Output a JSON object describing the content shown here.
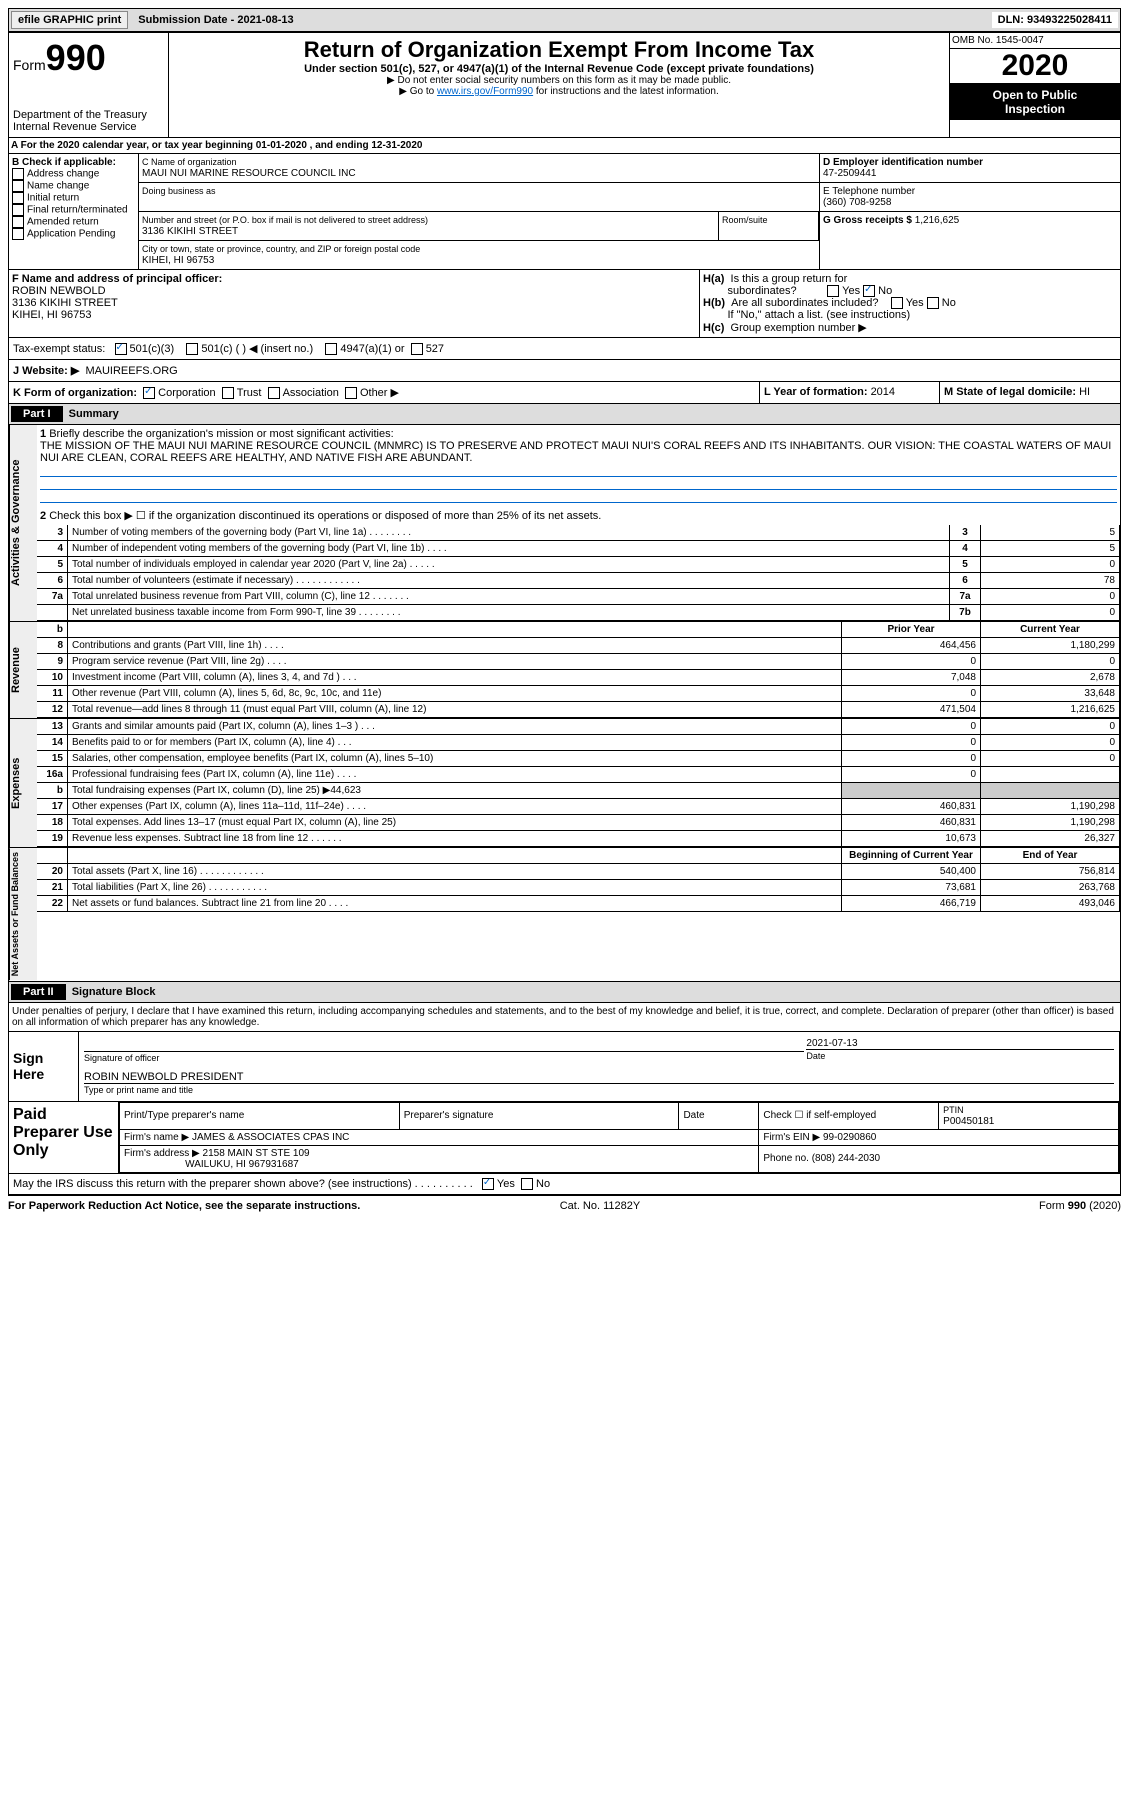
{
  "topbar": {
    "efile": "efile GRAPHIC print",
    "sub_label": "Submission Date - ",
    "sub_date": "2021-08-13",
    "dln_label": "DLN: ",
    "dln": "93493225028411"
  },
  "header": {
    "form_word": "Form",
    "form_no": "990",
    "dept": "Department of the Treasury",
    "irs": "Internal Revenue Service",
    "title": "Return of Organization Exempt From Income Tax",
    "sub1": "Under section 501(c), 527, or 4947(a)(1) of the Internal Revenue Code (except private foundations)",
    "sub2": "▶ Do not enter social security numbers on this form as it may be made public.",
    "sub3a": "▶ Go to ",
    "sub3_link": "www.irs.gov/Form990",
    "sub3b": " for instructions and the latest information.",
    "omb": "OMB No. 1545-0047",
    "year": "2020",
    "open1": "Open to Public",
    "open2": "Inspection"
  },
  "rowA": {
    "a": "A For the 2020 calendar year, or tax year beginning ",
    "beg": "01-01-2020",
    "mid": " , and ending ",
    "end": "12-31-2020"
  },
  "boxB": {
    "hdr": "B Check if applicable:",
    "items": [
      "Address change",
      "Name change",
      "Initial return",
      "Final return/terminated",
      "Amended return",
      "Application Pending"
    ]
  },
  "boxC": {
    "name_lbl": "C Name of organization",
    "name": "MAUI NUI MARINE RESOURCE COUNCIL INC",
    "dba_lbl": "Doing business as",
    "dba": "",
    "addr_lbl": "Number and street (or P.O. box if mail is not delivered to street address)",
    "room_lbl": "Room/suite",
    "addr": "3136 KIKIHI STREET",
    "city_lbl": "City or town, state or province, country, and ZIP or foreign postal code",
    "city": "KIHEI, HI  96753"
  },
  "boxD": {
    "lbl": "D Employer identification number",
    "val": "47-2509441"
  },
  "boxE": {
    "lbl": "E Telephone number",
    "val": "(360) 708-9258"
  },
  "boxG": {
    "lbl": "G Gross receipts $ ",
    "val": "1,216,625"
  },
  "boxF": {
    "lbl": "F  Name and address of principal officer:",
    "name": "ROBIN NEWBOLD",
    "addr": "3136 KIKIHI STREET",
    "city": "KIHEI, HI  96753"
  },
  "boxH": {
    "a_lbl": "H(a)",
    "a_txt": "Is this a group return for",
    "a_txt2": "subordinates?",
    "a_yes": "Yes",
    "a_no": "No",
    "b_lbl": "H(b)",
    "b_txt": "Are all subordinates included?",
    "b_yes": "Yes",
    "b_no": "No",
    "b_note": "If \"No,\" attach a list. (see instructions)",
    "c_lbl": "H(c)",
    "c_txt": "Group exemption number ▶"
  },
  "taxrow": {
    "lbl": "Tax-exempt status:",
    "o1": "501(c)(3)",
    "o2": "501(c) (  ) ◀ (insert no.)",
    "o3": "4947(a)(1) or",
    "o4": "527"
  },
  "jrow": {
    "lbl": "J Website: ▶",
    "val": "MAUIREEFS.ORG"
  },
  "krow": {
    "k": "K Form of organization:",
    "k1": "Corporation",
    "k2": "Trust",
    "k3": "Association",
    "k4": "Other ▶",
    "l_lbl": "L Year of formation: ",
    "l_val": "2014",
    "m_lbl": "M State of legal domicile: ",
    "m_val": "HI"
  },
  "part1": {
    "hdr": "Part I",
    "title": "Summary"
  },
  "summary": {
    "q1": "Briefly describe the organization's mission or most significant activities:",
    "mission": "THE MISSION OF THE MAUI NUI MARINE RESOURCE COUNCIL (MNMRC) IS TO PRESERVE AND PROTECT MAUI NUI'S CORAL REEFS AND ITS INHABITANTS. OUR VISION: THE COASTAL WATERS OF MAUI NUI ARE CLEAN, CORAL REEFS ARE HEALTHY, AND NATIVE FISH ARE ABUNDANT.",
    "q2": "Check this box ▶ ☐ if the organization discontinued its operations or disposed of more than 25% of its net assets.",
    "rows": [
      {
        "n": "3",
        "t": "Number of voting members of the governing body (Part VI, line 1a)  .   .   .   .   .   .   .   .",
        "box": "3",
        "v": "5"
      },
      {
        "n": "4",
        "t": "Number of independent voting members of the governing body (Part VI, line 1b)  .   .   .   .",
        "box": "4",
        "v": "5"
      },
      {
        "n": "5",
        "t": "Total number of individuals employed in calendar year 2020 (Part V, line 2a)  .   .   .   .   .",
        "box": "5",
        "v": "0"
      },
      {
        "n": "6",
        "t": "Total number of volunteers (estimate if necessary)  .   .   .   .   .   .   .   .   .   .   .   .",
        "box": "6",
        "v": "78"
      },
      {
        "n": "7a",
        "t": "Total unrelated business revenue from Part VIII, column (C), line 12  .   .   .   .   .   .   .",
        "box": "7a",
        "v": "0"
      },
      {
        "n": "",
        "t": "Net unrelated business taxable income from Form 990-T, line 39  .   .   .   .   .   .   .   .",
        "box": "7b",
        "v": "0"
      }
    ]
  },
  "revenue": {
    "hdr": {
      "b": "b",
      "prior": "Prior Year",
      "curr": "Current Year"
    },
    "rows": [
      {
        "n": "8",
        "t": "Contributions and grants (Part VIII, line 1h)  .   .   .   .",
        "p": "464,456",
        "c": "1,180,299"
      },
      {
        "n": "9",
        "t": "Program service revenue (Part VIII, line 2g)  .   .   .   .",
        "p": "0",
        "c": "0"
      },
      {
        "n": "10",
        "t": "Investment income (Part VIII, column (A), lines 3, 4, and 7d )  .   .   .",
        "p": "7,048",
        "c": "2,678"
      },
      {
        "n": "11",
        "t": "Other revenue (Part VIII, column (A), lines 5, 6d, 8c, 9c, 10c, and 11e)",
        "p": "0",
        "c": "33,648"
      },
      {
        "n": "12",
        "t": "Total revenue—add lines 8 through 11 (must equal Part VIII, column (A), line 12)",
        "p": "471,504",
        "c": "1,216,625"
      }
    ]
  },
  "expenses": {
    "rows": [
      {
        "n": "13",
        "t": "Grants and similar amounts paid (Part IX, column (A), lines 1–3 )  .   .   .",
        "p": "0",
        "c": "0"
      },
      {
        "n": "14",
        "t": "Benefits paid to or for members (Part IX, column (A), line 4)  .   .   .",
        "p": "0",
        "c": "0"
      },
      {
        "n": "15",
        "t": "Salaries, other compensation, employee benefits (Part IX, column (A), lines 5–10)",
        "p": "0",
        "c": "0"
      },
      {
        "n": "16a",
        "t": "Professional fundraising fees (Part IX, column (A), line 11e)  .   .   .   .",
        "p": "0",
        "c": ""
      },
      {
        "n": "b",
        "t": "Total fundraising expenses (Part IX, column (D), line 25) ▶44,623",
        "p": "",
        "c": "",
        "shade": true
      },
      {
        "n": "17",
        "t": "Other expenses (Part IX, column (A), lines 11a–11d, 11f–24e)  .   .   .   .",
        "p": "460,831",
        "c": "1,190,298"
      },
      {
        "n": "18",
        "t": "Total expenses. Add lines 13–17 (must equal Part IX, column (A), line 25)",
        "p": "460,831",
        "c": "1,190,298"
      },
      {
        "n": "19",
        "t": "Revenue less expenses. Subtract line 18 from line 12  .   .   .   .   .   .",
        "p": "10,673",
        "c": "26,327"
      }
    ]
  },
  "netassets": {
    "hdr": {
      "beg": "Beginning of Current Year",
      "end": "End of Year"
    },
    "rows": [
      {
        "n": "20",
        "t": "Total assets (Part X, line 16)  .   .   .   .   .   .   .   .   .   .   .   .",
        "p": "540,400",
        "c": "756,814"
      },
      {
        "n": "21",
        "t": "Total liabilities (Part X, line 26)  .   .   .   .   .   .   .   .   .   .   .",
        "p": "73,681",
        "c": "263,768"
      },
      {
        "n": "22",
        "t": "Net assets or fund balances. Subtract line 21 from line 20  .   .   .   .",
        "p": "466,719",
        "c": "493,046"
      }
    ]
  },
  "part2": {
    "hdr": "Part II",
    "title": "Signature Block",
    "decl": "Under penalties of perjury, I declare that I have examined this return, including accompanying schedules and statements, and to the best of my knowledge and belief, it is true, correct, and complete. Declaration of preparer (other than officer) is based on all information of which preparer has any knowledge."
  },
  "sign": {
    "lbl": "Sign Here",
    "sig_lbl": "Signature of officer",
    "date_lbl": "Date",
    "date": "2021-07-13",
    "name": "ROBIN NEWBOLD  PRESIDENT",
    "name_lbl": "Type or print name and title"
  },
  "prep": {
    "lbl": "Paid Preparer Use Only",
    "c1": "Print/Type preparer's name",
    "c2": "Preparer's signature",
    "c3": "Date",
    "c4": "Check ☐ if self-employed",
    "c5_lbl": "PTIN",
    "c5": "P00450181",
    "firm_lbl": "Firm's name    ▶",
    "firm": "JAMES & ASSOCIATES CPAS INC",
    "ein_lbl": "Firm's EIN ▶",
    "ein": "99-0290860",
    "addr_lbl": "Firm's address ▶",
    "addr1": "2158 MAIN ST STE 109",
    "addr2": "WAILUKU, HI  967931687",
    "phone_lbl": "Phone no. ",
    "phone": "(808) 244-2030"
  },
  "discuss": {
    "txt": "May the IRS discuss this return with the preparer shown above? (see instructions)  .   .   .   .   .   .   .   .   .   .",
    "yes": "Yes",
    "no": "No"
  },
  "foot": {
    "l": "For Paperwork Reduction Act Notice, see the separate instructions.",
    "m": "Cat. No. 11282Y",
    "r": "Form 990 (2020)"
  },
  "vlabels": {
    "ag": "Activities & Governance",
    "rev": "Revenue",
    "exp": "Expenses",
    "na": "Net Assets or Fund Balances"
  }
}
